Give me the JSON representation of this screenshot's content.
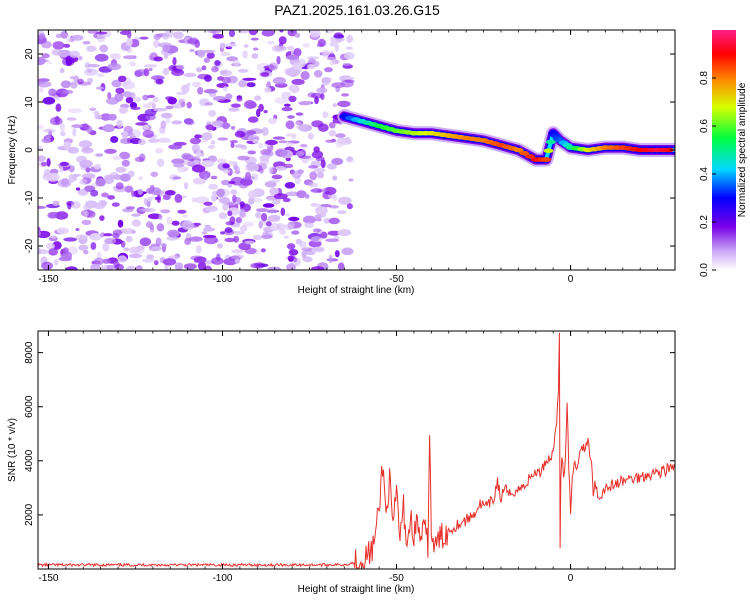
{
  "title": "PAZ1.2025.161.03.26.G15",
  "colors": {
    "snr_line": "#e8312b",
    "noise_purple": "#8a2be2",
    "axis": "#000000"
  },
  "chart_data": [
    {
      "type": "heatmap",
      "title": "",
      "xlabel": "Height of straight line (km)",
      "ylabel": "Frequency (Hz)",
      "xlim": [
        -153,
        30
      ],
      "ylim": [
        -25,
        25
      ],
      "xticks": [
        -150,
        -100,
        -50,
        0
      ],
      "yticks": [
        20,
        10,
        0,
        -10,
        -20
      ],
      "colorbar": {
        "label": "Normalized spectral amplitude",
        "range": [
          0,
          1
        ],
        "ticks": [
          "0.0",
          "0.2",
          "0.4",
          "0.6",
          "0.8"
        ],
        "colormap": "rainbow"
      },
      "noise_region": {
        "x_range": [
          -153,
          -63
        ],
        "y_range": [
          -25,
          25
        ]
      },
      "signal_track": {
        "x": [
          -65,
          -60,
          -55,
          -50,
          -45,
          -40,
          -35,
          -30,
          -25,
          -20,
          -15,
          -10,
          -7,
          -5,
          -3,
          0,
          5,
          10,
          15,
          20,
          25,
          30
        ],
        "y": [
          7,
          6,
          5,
          4,
          3.5,
          3.5,
          3,
          2.5,
          2,
          1,
          0,
          -2,
          -2,
          3.5,
          2,
          0.5,
          0,
          0.5,
          0.5,
          0,
          0,
          0
        ],
        "amplitude": [
          0.3,
          0.45,
          0.55,
          0.6,
          0.65,
          0.7,
          0.75,
          0.8,
          0.8,
          0.85,
          0.8,
          0.9,
          0.85,
          0.3,
          0.35,
          0.5,
          0.7,
          0.8,
          0.85,
          0.9,
          0.95,
          0.9
        ]
      }
    },
    {
      "type": "line",
      "title": "",
      "xlabel": "Height of straight line (km)",
      "ylabel": "SNR (10 * v/v)",
      "xlim": [
        -153,
        30
      ],
      "ylim": [
        0,
        8800
      ],
      "xticks": [
        -150,
        -100,
        -50,
        0
      ],
      "yticks": [
        2000,
        4000,
        6000,
        8000
      ],
      "series": [
        {
          "x": [
            -153,
            -140,
            -120,
            -100,
            -80,
            -65,
            -60,
            -57,
            -56,
            -55,
            -54,
            -53,
            -52,
            -51,
            -50,
            -49,
            -48,
            -47,
            -46,
            -45,
            -44,
            -43,
            -42,
            -41,
            -40.5,
            -40,
            -39.5,
            -39,
            -38,
            -36,
            -34,
            -32,
            -30,
            -28,
            -26,
            -24,
            -22,
            -21,
            -20,
            -19,
            -18,
            -16,
            -14,
            -12,
            -10,
            -9,
            -8,
            -7,
            -6,
            -5,
            -4,
            -3.5,
            -3.2,
            -3,
            -2.8,
            -2.5,
            -2,
            -1.5,
            -1,
            -0.5,
            0,
            0.5,
            1,
            2,
            3,
            4,
            5,
            6,
            6.5,
            7,
            8,
            9,
            10,
            12,
            14,
            16,
            18,
            20,
            22,
            24,
            26,
            28,
            30
          ],
          "y": [
            150,
            150,
            150,
            150,
            150,
            160,
            300,
            700,
            1300,
            2200,
            3900,
            2000,
            3300,
            1400,
            2900,
            1100,
            2300,
            900,
            1900,
            1300,
            1700,
            1100,
            1500,
            900,
            4900,
            1500,
            900,
            700,
            1100,
            1300,
            1500,
            1700,
            1800,
            2000,
            2400,
            2300,
            2600,
            3300,
            2500,
            3100,
            2700,
            2900,
            3000,
            3300,
            3600,
            3500,
            3800,
            4000,
            4100,
            4300,
            5600,
            6400,
            8800,
            600,
            3200,
            4200,
            3600,
            3900,
            6000,
            3700,
            2100,
            3500,
            3800,
            3900,
            4600,
            4400,
            4700,
            4000,
            2800,
            3300,
            2600,
            2800,
            3000,
            3100,
            3200,
            3300,
            3350,
            3400,
            3500,
            3550,
            3600,
            3700,
            3750
          ]
        }
      ]
    }
  ]
}
